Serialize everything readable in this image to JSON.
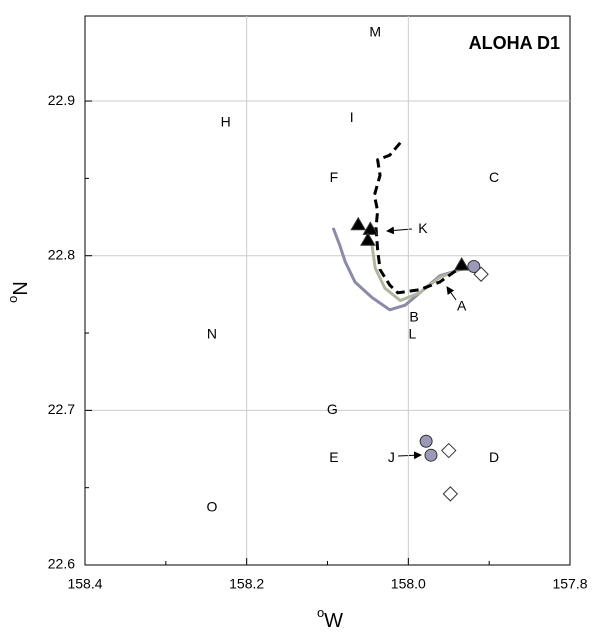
{
  "chart_data": {
    "type": "scatter",
    "title": "ALOHA D1",
    "xlabel_sup": "o",
    "xlabel": "W",
    "ylabel_sup": "o",
    "ylabel": "N",
    "xlim": [
      158.4,
      157.8
    ],
    "ylim": [
      22.6,
      22.955
    ],
    "xticks": [
      158.4,
      158.2,
      {
        "value": 158,
        "label": "158.0"
      },
      157.8
    ],
    "yticks": [
      22.6,
      22.7,
      22.8,
      22.9
    ],
    "minor_xticks": [
      158.3,
      158.1,
      157.9
    ],
    "minor_yticks": [
      22.65,
      22.75,
      22.85
    ],
    "grid": true,
    "series": [
      {
        "mode": "line",
        "color": "#8a8aab",
        "x": [
          158.093,
          158.085,
          158.078,
          158.066,
          158.045,
          158.023,
          158.004,
          157.979,
          157.961,
          157.936,
          157.924
        ],
        "y": [
          22.818,
          22.807,
          22.796,
          22.783,
          22.773,
          22.765,
          22.768,
          22.779,
          22.787,
          22.791,
          22.792
        ]
      },
      {
        "mode": "line",
        "color": "#b3b69f",
        "x": [
          158.045,
          158.041,
          158.029,
          158.01,
          157.986,
          157.961,
          157.936
        ],
        "y": [
          22.807,
          22.792,
          22.779,
          22.771,
          22.776,
          22.786,
          22.791
        ]
      },
      {
        "mode": "dashed",
        "color": "#000000",
        "x": [
          158.01,
          158.023,
          158.038,
          158.035,
          158.042,
          158.038,
          158.04,
          158.038,
          158.035,
          158.023,
          158.013,
          157.986,
          157.961,
          157.934
        ],
        "y": [
          22.873,
          22.865,
          22.862,
          22.852,
          22.839,
          22.829,
          22.818,
          22.804,
          22.791,
          22.781,
          22.776,
          22.778,
          22.783,
          22.793
        ]
      },
      {
        "mode": "triangle",
        "color": "#000000",
        "x": [
          158.062,
          158.047,
          158.05,
          157.934
        ],
        "y": [
          22.82,
          22.817,
          22.81,
          22.794
        ]
      },
      {
        "mode": "circle",
        "color": "#9a9ab8",
        "x": [
          157.919,
          157.978,
          157.972
        ],
        "y": [
          22.793,
          22.68,
          22.671
        ]
      },
      {
        "mode": "diamond",
        "color": "#ffffff",
        "x": [
          157.91,
          157.95,
          157.948
        ],
        "y": [
          22.788,
          22.674,
          22.646
        ]
      }
    ],
    "labels": [
      {
        "text": "M",
        "x": 158.041,
        "y": 22.944
      },
      {
        "text": "H",
        "x": 158.226,
        "y": 22.886
      },
      {
        "text": "I",
        "x": 158.07,
        "y": 22.889
      },
      {
        "text": "F",
        "x": 158.092,
        "y": 22.85
      },
      {
        "text": "C",
        "x": 157.894,
        "y": 22.85
      },
      {
        "text": "K",
        "x": 157.982,
        "y": 22.817
      },
      {
        "text": "A",
        "x": 157.934,
        "y": 22.767
      },
      {
        "text": "B",
        "x": 157.993,
        "y": 22.76
      },
      {
        "text": "L",
        "x": 157.995,
        "y": 22.749
      },
      {
        "text": "N",
        "x": 158.243,
        "y": 22.749
      },
      {
        "text": "G",
        "x": 158.094,
        "y": 22.7
      },
      {
        "text": "E",
        "x": 158.092,
        "y": 22.669
      },
      {
        "text": "J",
        "x": 158.021,
        "y": 22.669
      },
      {
        "text": "D",
        "x": 157.894,
        "y": 22.669
      },
      {
        "text": "O",
        "x": 158.243,
        "y": 22.637
      }
    ]
  }
}
